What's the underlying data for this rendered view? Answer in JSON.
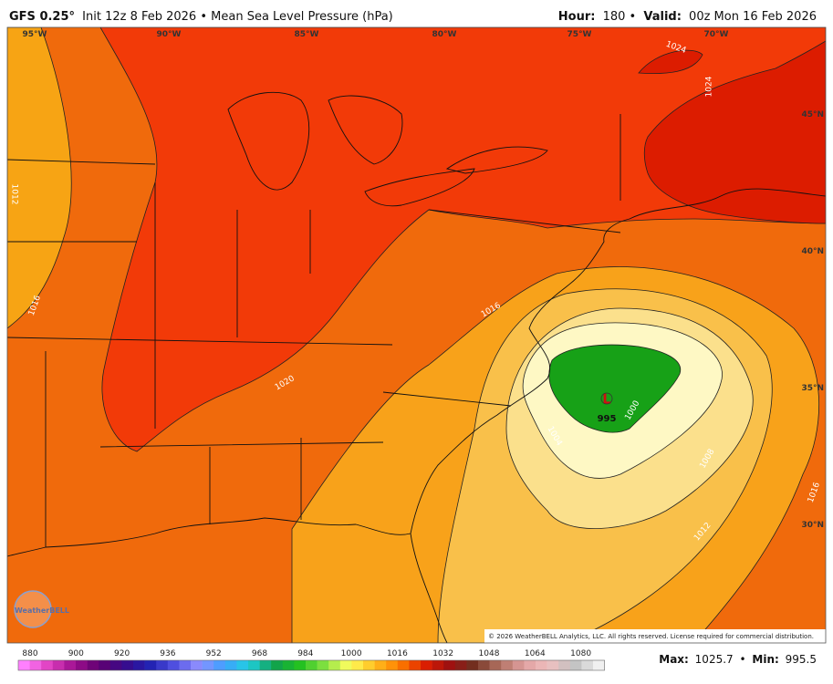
{
  "header": {
    "model": "GFS 0.25°",
    "init": "Init 12z 8 Feb 2026 • Mean Sea Level Pressure (hPa)",
    "hour_label": "Hour:",
    "hour": "180 •",
    "valid_label": "Valid:",
    "valid": "00z Mon 16 Feb 2026"
  },
  "map": {
    "longitudes": [
      "95°W",
      "90°W",
      "85°W",
      "80°W",
      "75°W",
      "70°W"
    ],
    "latitudes": [
      "45°N",
      "40°N",
      "35°N",
      "30°N"
    ],
    "contour_labels": [
      "1012",
      "1016",
      "1020",
      "1016",
      "1004",
      "1000",
      "1008",
      "1012",
      "1016",
      "1024",
      "1024"
    ],
    "low_symbol": "L",
    "low_value": "995",
    "logo": "WeatherBELL",
    "copyright": "© 2026 WeatherBELL Analytics, LLC. All rights reserved. License required for commercial distribution."
  },
  "colorbar": {
    "labels": [
      "880",
      "900",
      "920",
      "936",
      "952",
      "968",
      "984",
      "1000",
      "1016",
      "1032",
      "1048",
      "1064",
      "1080"
    ]
  },
  "footer": {
    "max_label": "Max:",
    "max": "1025.7",
    "sep": "•",
    "min_label": "Min:",
    "min": "995.5"
  }
}
